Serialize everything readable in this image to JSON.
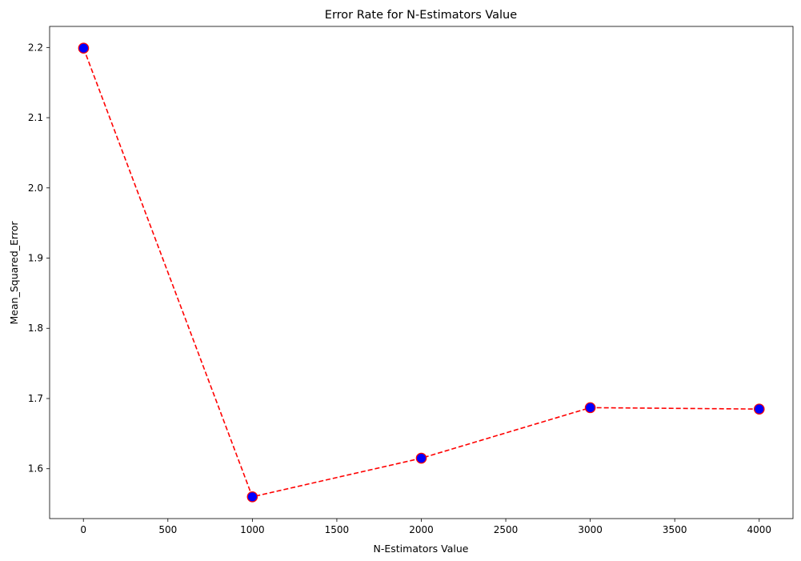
{
  "chart_data": {
    "type": "line",
    "title": "Error Rate for N-Estimators Value",
    "xlabel": "N-Estimators Value",
    "ylabel": "Mean_Squared_Error",
    "x": [
      1,
      1000,
      2000,
      3000,
      4000
    ],
    "series": [
      {
        "values": [
          2.199,
          1.56,
          1.615,
          1.687,
          1.685
        ]
      }
    ],
    "xlim": [
      -200,
      4200
    ],
    "ylim": [
      1.529,
      2.23
    ],
    "xticks": [
      0,
      500,
      1000,
      1500,
      2000,
      2500,
      3000,
      3500,
      4000
    ],
    "xtick_labels": [
      "0",
      "500",
      "1000",
      "1500",
      "2000",
      "2500",
      "3000",
      "3500",
      "4000"
    ],
    "yticks": [
      1.6,
      1.7,
      1.8,
      1.9,
      2.0,
      2.1,
      2.2
    ],
    "ytick_labels": [
      "1.6",
      "1.7",
      "1.8",
      "1.9",
      "2.0",
      "2.1",
      "2.2"
    ],
    "grid": false,
    "line_style": "dashed",
    "colors": {
      "line": "#ff0000",
      "marker_face": "#0000ff",
      "marker_edge": "#ff0000"
    }
  }
}
